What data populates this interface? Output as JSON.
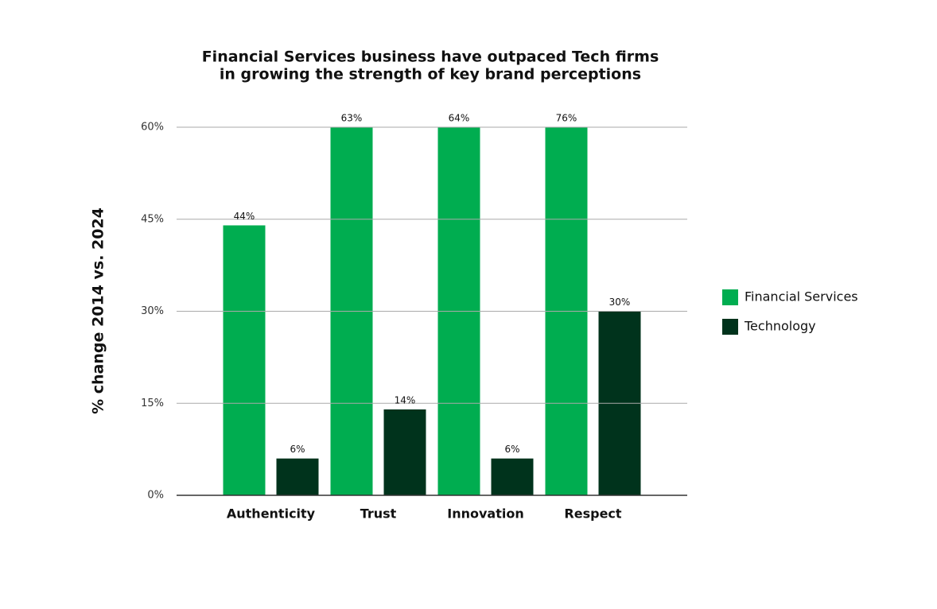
{
  "chart_data": {
    "type": "bar",
    "title": "Financial Services business have outpaced Tech firms",
    "subtitle": "in growing the strength of key brand perceptions",
    "y_label": "% change 2014 vs. 2024",
    "categories": [
      "Authenticity",
      "Trust",
      "Innovation",
      "Respect"
    ],
    "series": [
      {
        "name": "Financial Services",
        "color": "#00ad50",
        "values": [
          44,
          63,
          64,
          76
        ],
        "value_labels": [
          "44%",
          "63%",
          "64%",
          "76%"
        ]
      },
      {
        "name": "Technology",
        "color": "#00331c",
        "values": [
          6,
          14,
          6,
          30
        ],
        "value_labels": [
          "6%",
          "14%",
          "6%",
          "30%"
        ]
      }
    ],
    "ylim": [
      0,
      60
    ],
    "yticks": [
      {
        "value": 0,
        "label": "0%"
      },
      {
        "value": 15,
        "label": "15%"
      },
      {
        "value": 30,
        "label": "30%"
      },
      {
        "value": 45,
        "label": "45%"
      },
      {
        "value": 60,
        "label": "60%"
      }
    ],
    "grid": true,
    "legend": "right"
  }
}
